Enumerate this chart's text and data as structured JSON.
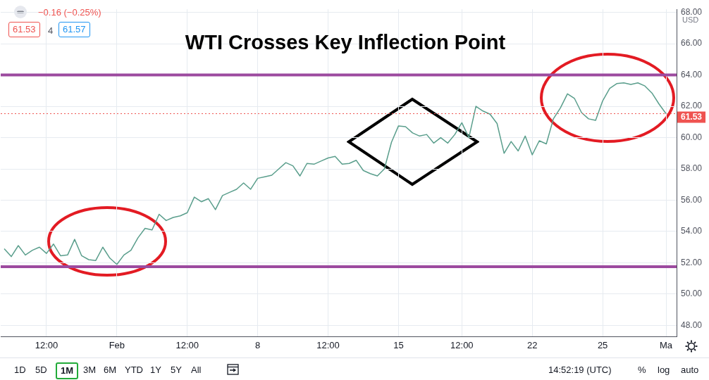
{
  "chart_data": {
    "type": "line",
    "title": "WTI Crosses Key Inflection Point",
    "categories": [
      null,
      null,
      null,
      null,
      null,
      null,
      "12:00",
      null,
      null,
      null,
      null,
      null,
      null,
      null,
      null,
      null,
      "Feb",
      null,
      null,
      null,
      null,
      null,
      null,
      null,
      null,
      null,
      "12:00",
      null,
      null,
      null,
      null,
      null,
      null,
      null,
      null,
      null,
      "8",
      null,
      null,
      null,
      null,
      null,
      null,
      null,
      null,
      null,
      "12:00",
      null,
      null,
      null,
      null,
      null,
      null,
      null,
      null,
      null,
      "15",
      null,
      null,
      null,
      null,
      null,
      null,
      null,
      null,
      "12:00",
      null,
      null,
      null,
      null,
      null,
      null,
      null,
      null,
      null,
      "22",
      null,
      null,
      null,
      null,
      null,
      null,
      null,
      null,
      null,
      "25",
      null,
      null,
      null,
      null,
      null,
      null,
      null,
      null,
      "Ma",
      null
    ],
    "series": [
      {
        "color": "#5a9e8c",
        "values": [
          52.9,
          52.4,
          53.1,
          52.5,
          52.8,
          53.0,
          52.6,
          53.2,
          52.45,
          52.5,
          53.5,
          52.45,
          52.2,
          52.15,
          53.0,
          52.3,
          51.9,
          52.5,
          52.8,
          53.6,
          54.2,
          54.1,
          55.1,
          54.7,
          54.9,
          55.0,
          55.2,
          56.2,
          55.9,
          56.1,
          55.4,
          56.3,
          56.5,
          56.7,
          57.1,
          56.7,
          57.4,
          57.5,
          57.6,
          58.0,
          58.4,
          58.2,
          57.55,
          58.35,
          58.3,
          58.5,
          58.7,
          58.8,
          58.3,
          58.35,
          58.55,
          57.9,
          57.7,
          57.55,
          58.0,
          59.7,
          60.75,
          60.7,
          60.3,
          60.1,
          60.2,
          59.65,
          60.0,
          59.65,
          60.2,
          60.95,
          60.0,
          62.0,
          61.7,
          61.5,
          60.9,
          59.0,
          59.75,
          59.15,
          60.1,
          58.9,
          59.8,
          59.6,
          61.2,
          61.9,
          62.8,
          62.5,
          61.6,
          61.2,
          61.1,
          62.35,
          63.15,
          63.45,
          63.5,
          63.4,
          63.5,
          63.3,
          62.85,
          62.15,
          61.53,
          null
        ]
      }
    ],
    "ylim": [
      47.3,
      68.2
    ],
    "yticks": [
      {
        "value": 48,
        "label": "48.00"
      },
      {
        "value": 50,
        "label": "50.00"
      },
      {
        "value": 52,
        "label": "52.00"
      },
      {
        "value": 54,
        "label": "54.00"
      },
      {
        "value": 56,
        "label": "56.00"
      },
      {
        "value": 58,
        "label": "58.00"
      },
      {
        "value": 60,
        "label": "60.00"
      },
      {
        "value": 62,
        "label": "62.00"
      },
      {
        "value": 64,
        "label": "64.00"
      },
      {
        "value": 66,
        "label": "66.00"
      },
      {
        "value": 68,
        "label": "68.00"
      }
    ],
    "ref_lines": [
      {
        "axis": "y",
        "value": 64,
        "color": "#9c4a9f",
        "line_style": "solid"
      },
      {
        "axis": "y",
        "value": 51.75,
        "color": "#9c4a9f",
        "line_style": "solid"
      },
      {
        "axis": "y",
        "value": 61.53,
        "label": "61.53",
        "color": "#ef5350",
        "line_style": "dotted"
      }
    ],
    "annotations": [
      "−0.16 (−0.25%)",
      "61.53",
      "4",
      "61.57",
      "USD",
      "1D",
      "5D",
      "1M",
      "3M",
      "6M",
      "YTD",
      "1Y",
      "5Y",
      "All",
      "14:52:19 (UTC)",
      "%",
      "log",
      "auto"
    ],
    "grid": true,
    "legend": false,
    "marker": "none",
    "line_style": "solid"
  }
}
